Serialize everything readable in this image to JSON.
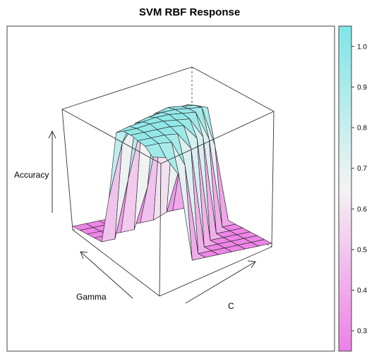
{
  "chart_data": {
    "type": "surface",
    "title": "SVM RBF Response",
    "xlabel": "Gamma",
    "ylabel": "C",
    "zlabel": "Accuracy",
    "colorbar": {
      "range": [
        0.25,
        1.05
      ],
      "ticks": [
        0.3,
        0.4,
        0.5,
        0.6,
        0.7,
        0.8,
        0.9,
        1.0
      ],
      "tick_labels": [
        "0.3",
        "0.4",
        "0.5",
        "0.6",
        "0.7",
        "0.8",
        "0.9",
        "1.0"
      ],
      "colors": [
        "#ee7fe6",
        "#f2f2f2",
        "#7ee6e6"
      ]
    },
    "zlim": [
      0.25,
      1.05
    ],
    "surface": [
      [
        0.27,
        0.27,
        0.28,
        0.3,
        0.27,
        0.27,
        0.27,
        0.27,
        0.27,
        0.27,
        0.27,
        0.27
      ],
      [
        0.27,
        0.27,
        0.5,
        0.86,
        0.92,
        0.72,
        0.27,
        0.27,
        0.27,
        0.27,
        0.27,
        0.27
      ],
      [
        0.27,
        0.27,
        0.55,
        0.93,
        0.95,
        0.96,
        0.8,
        0.27,
        0.27,
        0.27,
        0.27,
        0.27
      ],
      [
        0.27,
        0.27,
        0.3,
        0.92,
        0.96,
        0.97,
        0.97,
        0.85,
        0.27,
        0.27,
        0.27,
        0.27
      ],
      [
        0.27,
        0.27,
        0.27,
        0.88,
        0.97,
        0.98,
        0.98,
        0.97,
        0.88,
        0.27,
        0.27,
        0.27
      ],
      [
        0.27,
        0.27,
        0.27,
        0.5,
        0.95,
        0.98,
        0.99,
        0.98,
        0.97,
        0.86,
        0.27,
        0.27
      ],
      [
        0.27,
        0.27,
        0.27,
        0.27,
        0.9,
        0.97,
        0.99,
        0.99,
        0.98,
        0.96,
        0.8,
        0.27
      ],
      [
        0.27,
        0.27,
        0.27,
        0.27,
        0.6,
        0.95,
        0.98,
        0.99,
        0.98,
        0.97,
        0.95,
        0.78
      ],
      [
        0.27,
        0.27,
        0.27,
        0.27,
        0.27,
        0.85,
        0.97,
        0.98,
        0.98,
        0.97,
        0.96,
        0.9
      ],
      [
        0.27,
        0.27,
        0.27,
        0.27,
        0.27,
        0.55,
        0.95,
        0.98,
        0.98,
        0.97,
        0.96,
        0.92
      ]
    ]
  }
}
